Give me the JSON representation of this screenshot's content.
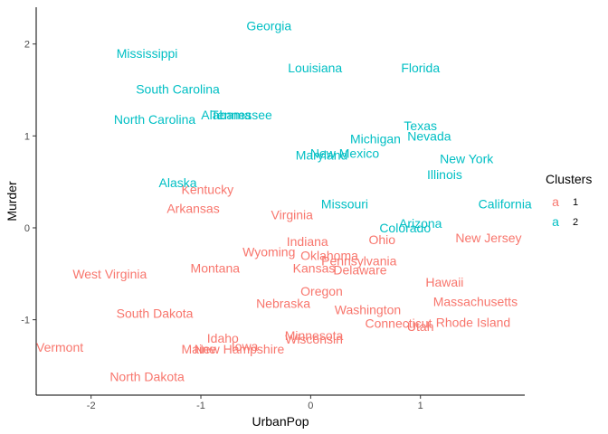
{
  "chart_data": {
    "type": "scatter",
    "xlabel": "UrbanPop",
    "ylabel": "Murder",
    "xlim": [
      -2.5,
      1.95
    ],
    "ylim": [
      -1.82,
      2.4
    ],
    "xticks": [
      -2,
      -1,
      0,
      1
    ],
    "yticks": [
      -1,
      0,
      1,
      2
    ],
    "grid": false,
    "legend": {
      "title": "Clusters",
      "placement": "right",
      "entries": [
        {
          "key": "a",
          "label": "1",
          "color": "#F8766D"
        },
        {
          "key": "a",
          "label": "2",
          "color": "#00BFC4"
        }
      ]
    },
    "series": [
      {
        "name": "1",
        "color": "#F8766D",
        "points": [
          {
            "label": "Kentucky",
            "x": -0.94,
            "y": 0.42
          },
          {
            "label": "Arkansas",
            "x": -1.07,
            "y": 0.21
          },
          {
            "label": "Virginia",
            "x": -0.17,
            "y": 0.14
          },
          {
            "label": "Indiana",
            "x": -0.03,
            "y": -0.15
          },
          {
            "label": "Ohio",
            "x": 0.65,
            "y": -0.13
          },
          {
            "label": "New Jersey",
            "x": 1.62,
            "y": -0.11
          },
          {
            "label": "Wyoming",
            "x": -0.38,
            "y": -0.26
          },
          {
            "label": "Oklahoma",
            "x": 0.17,
            "y": -0.3
          },
          {
            "label": "Pennsylvania",
            "x": 0.44,
            "y": -0.36
          },
          {
            "label": "Montana",
            "x": -0.87,
            "y": -0.44
          },
          {
            "label": "Kansas",
            "x": 0.03,
            "y": -0.44
          },
          {
            "label": "Delaware",
            "x": 0.45,
            "y": -0.46
          },
          {
            "label": "West Virginia",
            "x": -1.83,
            "y": -0.5
          },
          {
            "label": "Hawaii",
            "x": 1.22,
            "y": -0.59
          },
          {
            "label": "Oregon",
            "x": 0.1,
            "y": -0.69
          },
          {
            "label": "Nebraska",
            "x": -0.25,
            "y": -0.82
          },
          {
            "label": "Massachusetts",
            "x": 1.5,
            "y": -0.8
          },
          {
            "label": "Washington",
            "x": 0.52,
            "y": -0.89
          },
          {
            "label": "South Dakota",
            "x": -1.42,
            "y": -0.93
          },
          {
            "label": "Connecticut",
            "x": 0.8,
            "y": -1.04
          },
          {
            "label": "Rhode Island",
            "x": 1.48,
            "y": -1.03
          },
          {
            "label": "Utah",
            "x": 1.0,
            "y": -1.07
          },
          {
            "label": "Minnesota",
            "x": 0.03,
            "y": -1.17
          },
          {
            "label": "Wisconsin",
            "x": 0.03,
            "y": -1.21
          },
          {
            "label": "Idaho",
            "x": -0.8,
            "y": -1.2
          },
          {
            "label": "Iowa",
            "x": -0.6,
            "y": -1.29
          },
          {
            "label": "Maine",
            "x": -1.02,
            "y": -1.32
          },
          {
            "label": "New Hampshire",
            "x": -0.65,
            "y": -1.32
          },
          {
            "label": "Vermont",
            "x": -2.52,
            "y": -1.3
          },
          {
            "label": "North Dakota",
            "x": -1.49,
            "y": -1.62
          }
        ]
      },
      {
        "name": "2",
        "color": "#00BFC4",
        "points": [
          {
            "label": "Georgia",
            "x": -0.38,
            "y": 2.2
          },
          {
            "label": "Mississippi",
            "x": -1.49,
            "y": 1.9
          },
          {
            "label": "Louisiana",
            "x": 0.04,
            "y": 1.74
          },
          {
            "label": "Florida",
            "x": 1.0,
            "y": 1.74
          },
          {
            "label": "South Carolina",
            "x": -1.21,
            "y": 1.51
          },
          {
            "label": "North Carolina",
            "x": -1.42,
            "y": 1.18
          },
          {
            "label": "Alabama",
            "x": -0.77,
            "y": 1.23
          },
          {
            "label": "Tennessee",
            "x": -0.63,
            "y": 1.23
          },
          {
            "label": "Texas",
            "x": 1.0,
            "y": 1.11
          },
          {
            "label": "Nevada",
            "x": 1.08,
            "y": 1.0
          },
          {
            "label": "Michigan",
            "x": 0.59,
            "y": 0.97
          },
          {
            "label": "New Mexico",
            "x": 0.31,
            "y": 0.81
          },
          {
            "label": "Maryland",
            "x": 0.1,
            "y": 0.79
          },
          {
            "label": "New York",
            "x": 1.42,
            "y": 0.75
          },
          {
            "label": "Illinois",
            "x": 1.22,
            "y": 0.58
          },
          {
            "label": "Alaska",
            "x": -1.21,
            "y": 0.49
          },
          {
            "label": "Missouri",
            "x": 0.31,
            "y": 0.26
          },
          {
            "label": "California",
            "x": 1.77,
            "y": 0.26
          },
          {
            "label": "Colorado",
            "x": 0.86,
            "y": 0.0
          },
          {
            "label": "Arizona",
            "x": 1.0,
            "y": 0.05
          }
        ]
      }
    ]
  }
}
